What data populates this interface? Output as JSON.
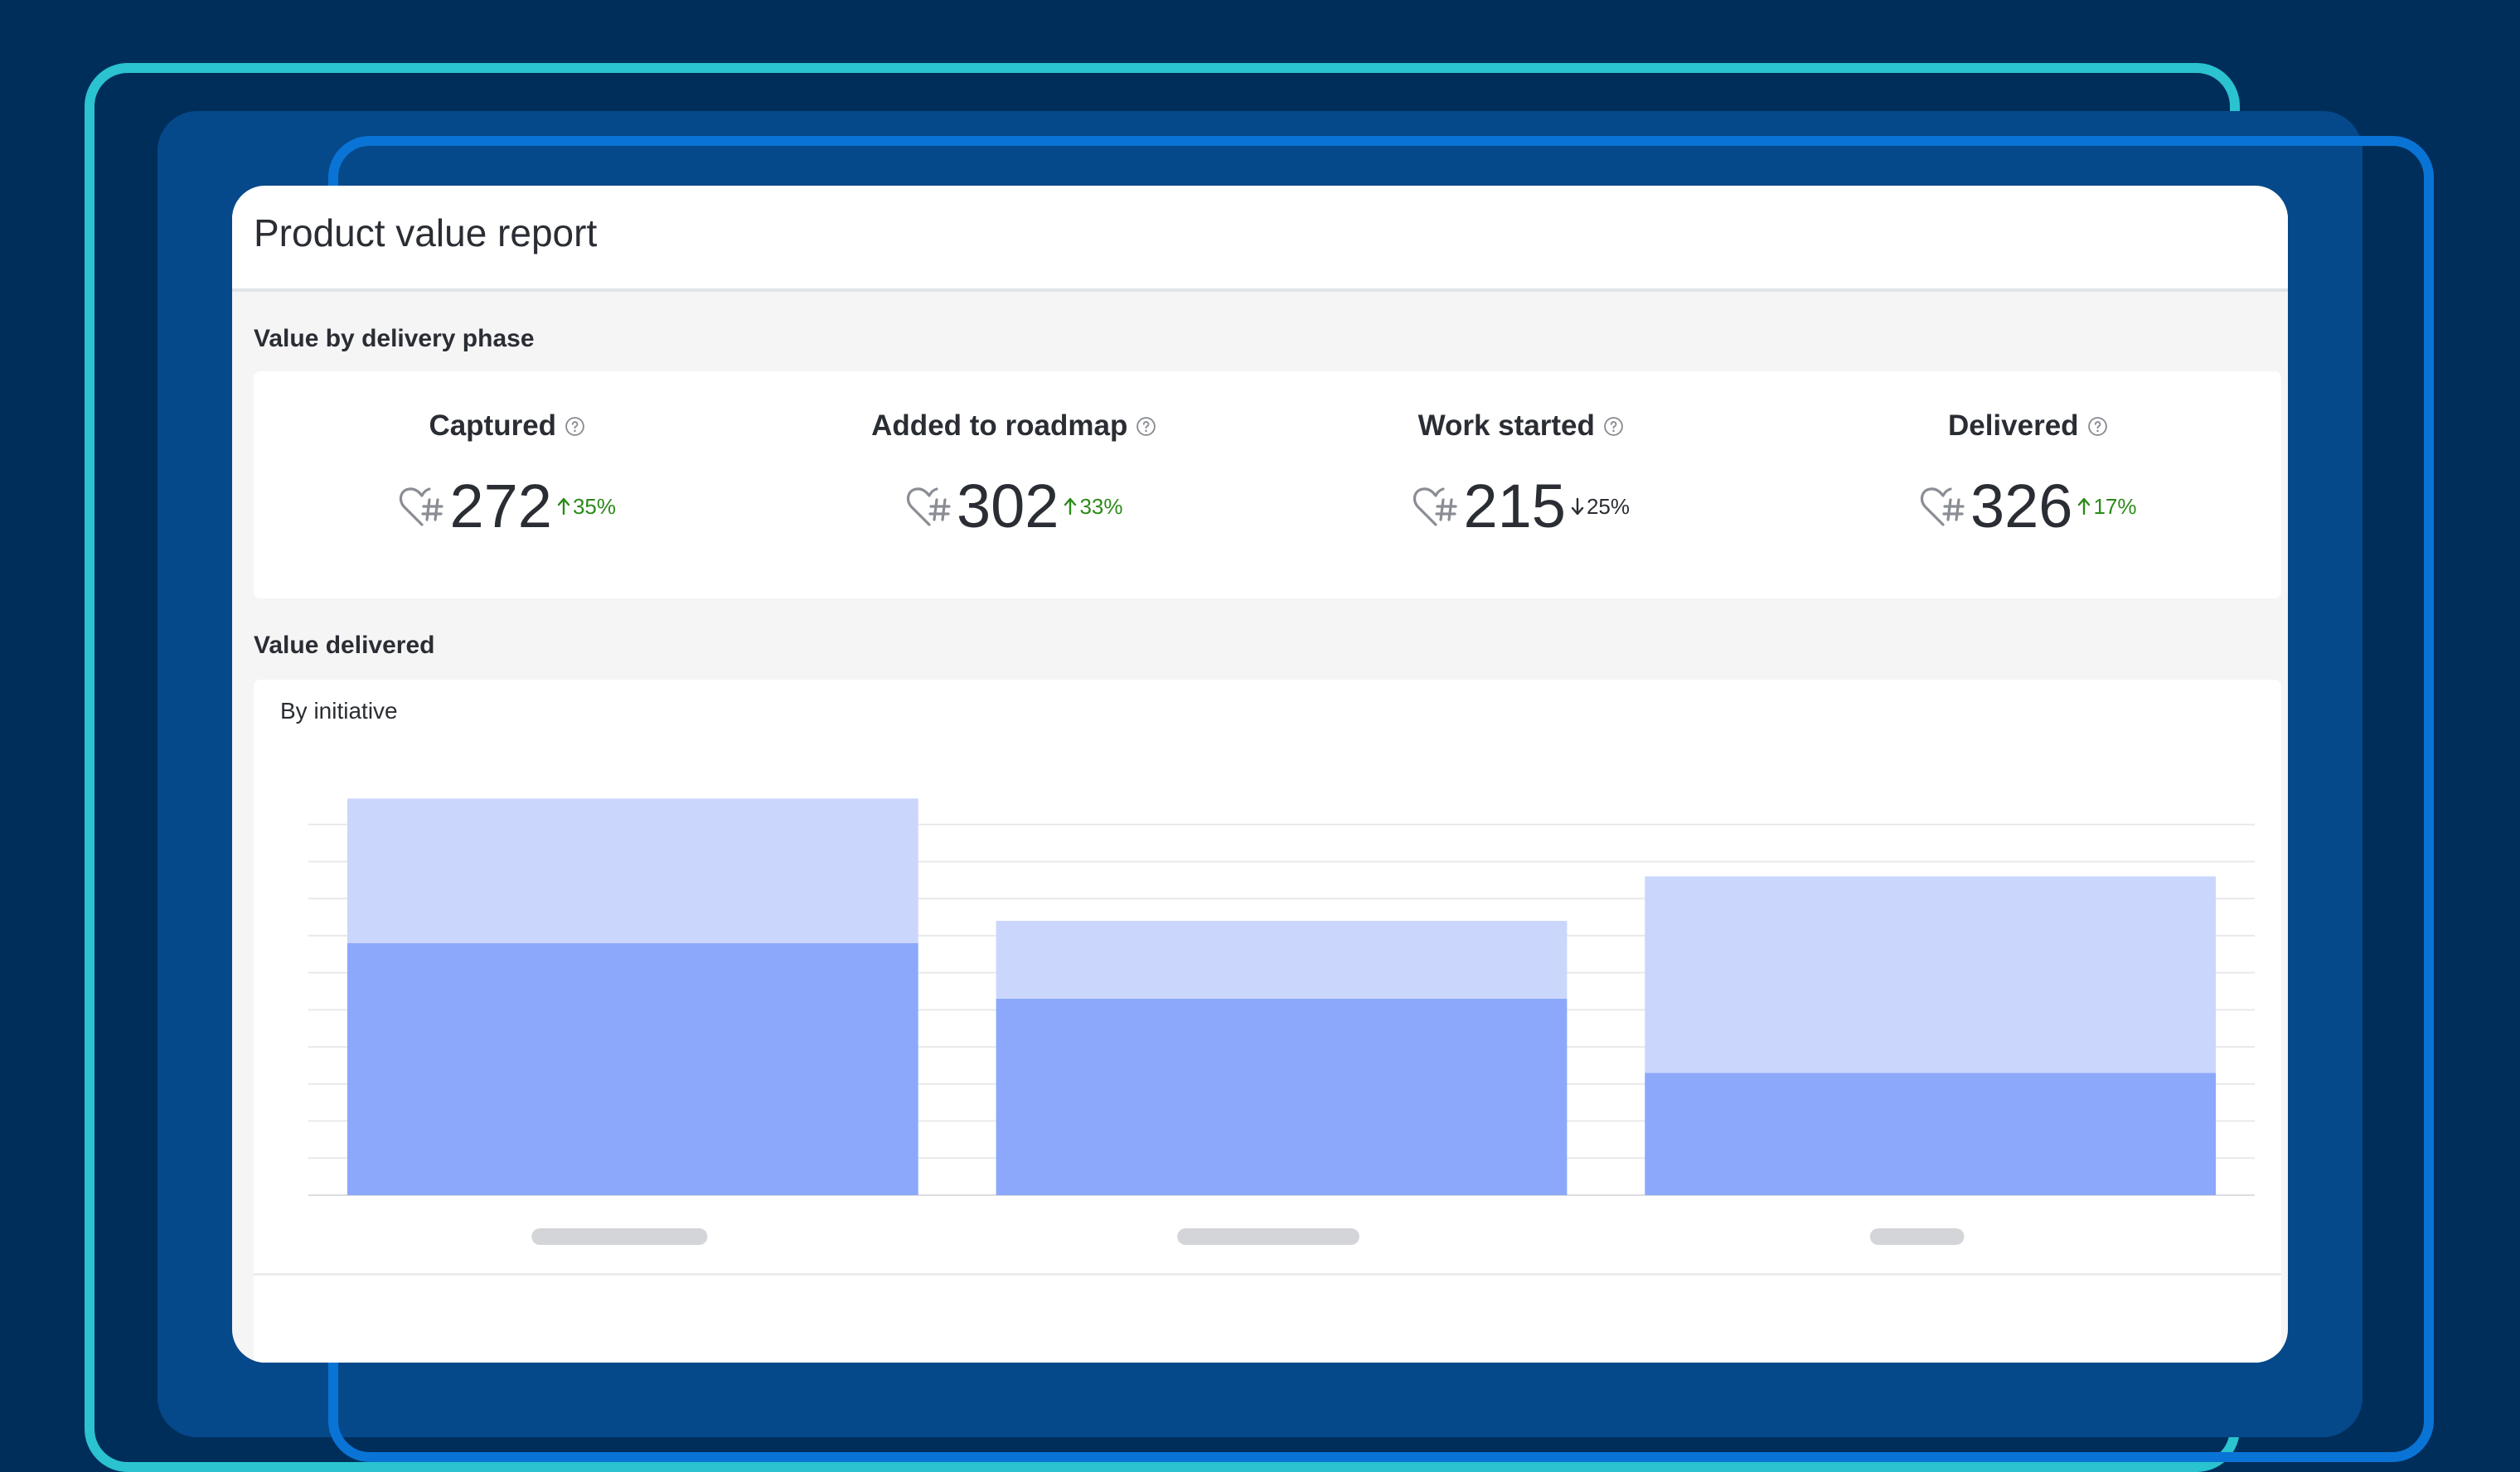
{
  "report": {
    "title": "Product value report",
    "phase_section_title": "Value by delivery phase",
    "delivered_section_title": "Value delivered",
    "chart_subtitle": "By initiative"
  },
  "metrics": [
    {
      "label": "Captured",
      "value": "272",
      "change": "35%",
      "direction": "up",
      "icon": "heart-hash-icon"
    },
    {
      "label": "Added to roadmap",
      "value": "302",
      "change": "33%",
      "direction": "up",
      "icon": "heart-hash-icon"
    },
    {
      "label": "Work started",
      "value": "215",
      "change": "25%",
      "direction": "down",
      "icon": "heart-hash-icon"
    },
    {
      "label": "Delivered",
      "value": "326",
      "change": "17%",
      "direction": "up",
      "icon": "heart-hash-icon"
    }
  ],
  "colors": {
    "positive": "#2c8a1a",
    "negative": "#2a2d33",
    "bar_dark": "#8ba8fb",
    "bar_light": "#cbd6fd",
    "placeholder_label": "#d4d5d8"
  },
  "chart_data": {
    "type": "bar",
    "stacked": true,
    "categories": [
      "",
      "",
      ""
    ],
    "category_label_widths": [
      0.56,
      0.58,
      0.3
    ],
    "series": [
      {
        "values": [
          6.8,
          5.3,
          3.3
        ]
      },
      {
        "values": [
          3.9,
          2.1,
          5.3
        ]
      }
    ],
    "ylim": [
      0,
      11
    ],
    "grid_lines": 10,
    "grid": true,
    "title": "",
    "xlabel": "",
    "ylabel": ""
  }
}
